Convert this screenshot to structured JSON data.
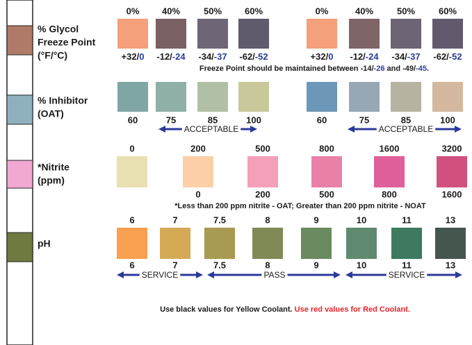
{
  "labels": {
    "glycol": [
      "% Glycol",
      "Freeze Point",
      "(°F/°C)"
    ],
    "inhibitor": [
      "% Inhibitor",
      "(OAT)"
    ],
    "nitrite": [
      "*Nitrite",
      "(ppm)"
    ],
    "ph": [
      "pH"
    ]
  },
  "glycol": {
    "top_left": [
      "0%",
      "40%",
      "50%",
      "60%"
    ],
    "top_right": [
      "0%",
      "40%",
      "50%",
      "60%"
    ],
    "bottom_left": [
      {
        "f": "+32/",
        "c": "0"
      },
      {
        "f": "-12/",
        "c": "-24"
      },
      {
        "f": "-34/",
        "c": "-37"
      },
      {
        "f": "-62/",
        "c": "-52"
      }
    ],
    "bottom_right": [
      {
        "f": "+32/",
        "c": "0"
      },
      {
        "f": "-12/",
        "c": "-24"
      },
      {
        "f": "-34/",
        "c": "-37"
      },
      {
        "f": "-62/",
        "c": "-52"
      }
    ],
    "note": [
      "Freeze Point should be maintained between ",
      "-14/",
      "-26",
      " and ",
      "-49/",
      "-45",
      "."
    ]
  },
  "inhibitor": {
    "left": [
      "60",
      "75",
      "85",
      "100"
    ],
    "right": [
      "60",
      "75",
      "85",
      "100"
    ],
    "range": "ACCEPTABLE"
  },
  "nitrite": {
    "top": [
      "0",
      "200",
      "500",
      "800",
      "1600",
      "3200"
    ],
    "bottom": [
      "0",
      "200",
      "500",
      "800",
      "1600"
    ],
    "note": "*Less than 200 ppm nitrite - OAT; Greater than 200 ppm nitrite - NOAT"
  },
  "ph": {
    "top": [
      "6",
      "7",
      "7.5",
      "8",
      "9",
      "10",
      "11",
      "13"
    ],
    "bottom": [
      "6",
      "7",
      "7.5",
      "8",
      "9",
      "10",
      "11",
      "13"
    ],
    "ranges": [
      "SERVICE",
      "PASS",
      "SERVICE"
    ]
  },
  "footer": {
    "black": "Use black values for Yellow Coolant.",
    "red": "Use red values for Red Coolant."
  }
}
